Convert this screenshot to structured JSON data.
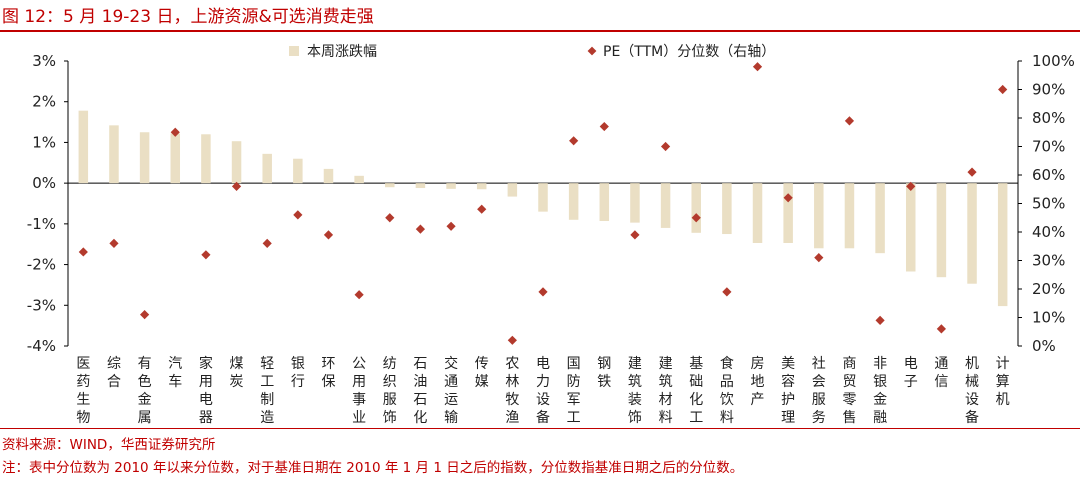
{
  "title": "图 12：5 月 19-23 日，上游资源&可选消费走强",
  "source": "资料来源：WIND，华西证券研究所",
  "note": "注：表中分位数为 2010 年以来分位数，对于基准日期在 2010 年 1 月 1 日之后的指数，分位数指基准日期之后的分位数。",
  "colors": {
    "bar": "#eadfc4",
    "marker": "#b33a2d",
    "accent": "#c00000",
    "axis": "#000000"
  },
  "chart_data": {
    "type": "bar",
    "legend_position": "top",
    "grid": false,
    "categories": [
      "医药生物",
      "综合",
      "有色金属",
      "汽车",
      "家用电器",
      "煤炭",
      "轻工制造",
      "银行",
      "环保",
      "公用事业",
      "纺织服饰",
      "石油石化",
      "交通运输",
      "传媒",
      "农林牧渔",
      "电力设备",
      "国防军工",
      "钢铁",
      "建筑装饰",
      "建筑材料",
      "基础化工",
      "食品饮料",
      "房地产",
      "美容护理",
      "社会服务",
      "商贸零售",
      "非银金融",
      "电子",
      "通信",
      "机械设备",
      "计算机"
    ],
    "series": [
      {
        "name": "本周涨跌幅",
        "type": "bar",
        "axis": "left",
        "values": [
          1.78,
          1.42,
          1.25,
          1.22,
          1.2,
          1.03,
          0.72,
          0.6,
          0.35,
          0.18,
          -0.1,
          -0.12,
          -0.14,
          -0.15,
          -0.33,
          -0.7,
          -0.9,
          -0.93,
          -0.97,
          -1.1,
          -1.22,
          -1.25,
          -1.47,
          -1.47,
          -1.6,
          -1.6,
          -1.72,
          -2.17,
          -2.31,
          -2.47,
          -3.02
        ]
      },
      {
        "name": "PE（TTM）分位数（右轴）",
        "type": "scatter",
        "axis": "right",
        "values": [
          33,
          36,
          11,
          75,
          32,
          56,
          36,
          46,
          39,
          18,
          45,
          41,
          42,
          48,
          2,
          19,
          72,
          77,
          39,
          70,
          45,
          19,
          98,
          52,
          31,
          79,
          9,
          56,
          6,
          61,
          90
        ]
      }
    ],
    "left_axis": {
      "min": -4,
      "max": 3,
      "ticks": [
        "-4%",
        "-3%",
        "-2%",
        "-1%",
        "0%",
        "1%",
        "2%",
        "3%"
      ]
    },
    "right_axis": {
      "min": 0,
      "max": 100,
      "ticks": [
        "0%",
        "10%",
        "20%",
        "30%",
        "40%",
        "50%",
        "60%",
        "70%",
        "80%",
        "90%",
        "100%"
      ]
    }
  }
}
